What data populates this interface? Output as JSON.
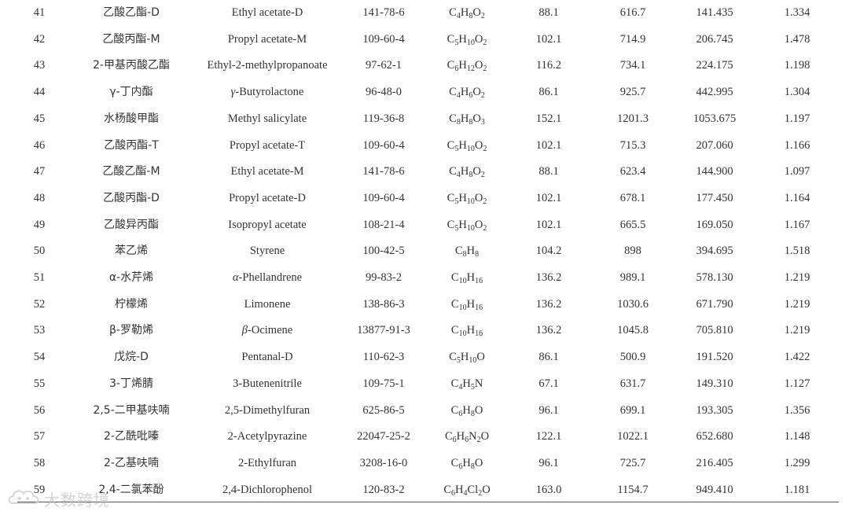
{
  "rows": [
    {
      "no": "41",
      "cn": "乙酸乙酯-D",
      "en": [
        {
          "t": "Ethyl acetate-D"
        }
      ],
      "cas": "141-78-6",
      "formula": [
        {
          "t": "C"
        },
        {
          "s": "4"
        },
        {
          "t": "H"
        },
        {
          "s": "8"
        },
        {
          "t": "O"
        },
        {
          "s": "2"
        }
      ],
      "mw": "88.1",
      "ri": "616.7",
      "rt": "141.435",
      "dt": "1.334"
    },
    {
      "no": "42",
      "cn": "乙酸丙酯-M",
      "en": [
        {
          "t": "Propyl acetate-M"
        }
      ],
      "cas": "109-60-4",
      "formula": [
        {
          "t": "C"
        },
        {
          "s": "5"
        },
        {
          "t": "H"
        },
        {
          "s": "10"
        },
        {
          "t": "O"
        },
        {
          "s": "2"
        }
      ],
      "mw": "102.1",
      "ri": "714.9",
      "rt": "206.745",
      "dt": "1.478"
    },
    {
      "no": "43",
      "cn": "2-甲基丙酸乙酯",
      "en": [
        {
          "t": "Ethyl-2-methylpropanoate"
        }
      ],
      "cas": "97-62-1",
      "formula": [
        {
          "t": "C"
        },
        {
          "s": "6"
        },
        {
          "t": "H"
        },
        {
          "s": "12"
        },
        {
          "t": "O"
        },
        {
          "s": "2"
        }
      ],
      "mw": "116.2",
      "ri": "734.1",
      "rt": "224.175",
      "dt": "1.198"
    },
    {
      "no": "44",
      "cn": "γ-丁内酯",
      "en": [
        {
          "i": "γ"
        },
        {
          "t": "-Butyrolactone"
        }
      ],
      "cas": "96-48-0",
      "formula": [
        {
          "t": "C"
        },
        {
          "s": "4"
        },
        {
          "t": "H"
        },
        {
          "s": "6"
        },
        {
          "t": "O"
        },
        {
          "s": "2"
        }
      ],
      "mw": "86.1",
      "ri": "925.7",
      "rt": "442.995",
      "dt": "1.304"
    },
    {
      "no": "45",
      "cn": "水杨酸甲酯",
      "en": [
        {
          "t": "Methyl salicylate"
        }
      ],
      "cas": "119-36-8",
      "formula": [
        {
          "t": "C"
        },
        {
          "s": "8"
        },
        {
          "t": "H"
        },
        {
          "s": "8"
        },
        {
          "t": "O"
        },
        {
          "s": "3"
        }
      ],
      "mw": "152.1",
      "ri": "1201.3",
      "rt": "1053.675",
      "dt": "1.197"
    },
    {
      "no": "46",
      "cn": "乙酸丙酯-T",
      "en": [
        {
          "t": "Propyl acetate-T"
        }
      ],
      "cas": "109-60-4",
      "formula": [
        {
          "t": "C"
        },
        {
          "s": "5"
        },
        {
          "t": "H"
        },
        {
          "s": "10"
        },
        {
          "t": "O"
        },
        {
          "s": "2"
        }
      ],
      "mw": "102.1",
      "ri": "715.3",
      "rt": "207.060",
      "dt": "1.166"
    },
    {
      "no": "47",
      "cn": "乙酸乙酯-M",
      "en": [
        {
          "t": "Ethyl acetate-M"
        }
      ],
      "cas": "141-78-6",
      "formula": [
        {
          "t": "C"
        },
        {
          "s": "4"
        },
        {
          "t": "H"
        },
        {
          "s": "8"
        },
        {
          "t": "O"
        },
        {
          "s": "2"
        }
      ],
      "mw": "88.1",
      "ri": "623.4",
      "rt": "144.900",
      "dt": "1.097"
    },
    {
      "no": "48",
      "cn": "乙酸丙酯-D",
      "en": [
        {
          "t": "Propyl acetate-D"
        }
      ],
      "cas": "109-60-4",
      "formula": [
        {
          "t": "C"
        },
        {
          "s": "5"
        },
        {
          "t": "H"
        },
        {
          "s": "10"
        },
        {
          "t": "O"
        },
        {
          "s": "2"
        }
      ],
      "mw": "102.1",
      "ri": "678.1",
      "rt": "177.450",
      "dt": "1.164"
    },
    {
      "no": "49",
      "cn": "乙酸异丙酯",
      "en": [
        {
          "t": "Isopropyl acetate"
        }
      ],
      "cas": "108-21-4",
      "formula": [
        {
          "t": "C"
        },
        {
          "s": "5"
        },
        {
          "t": "H"
        },
        {
          "s": "10"
        },
        {
          "t": "O"
        },
        {
          "s": "2"
        }
      ],
      "mw": "102.1",
      "ri": "665.5",
      "rt": "169.050",
      "dt": "1.167"
    },
    {
      "no": "50",
      "cn": "苯乙烯",
      "en": [
        {
          "t": "Styrene"
        }
      ],
      "cas": "100-42-5",
      "formula": [
        {
          "t": "C"
        },
        {
          "s": "8"
        },
        {
          "t": "H"
        },
        {
          "s": "8"
        }
      ],
      "mw": "104.2",
      "ri": "898",
      "rt": "394.695",
      "dt": "1.518"
    },
    {
      "no": "51",
      "cn": "α-水芹烯",
      "en": [
        {
          "i": "α"
        },
        {
          "t": "-Phellandrene"
        }
      ],
      "cas": "99-83-2",
      "formula": [
        {
          "t": "C"
        },
        {
          "s": "10"
        },
        {
          "t": "H"
        },
        {
          "s": "16"
        }
      ],
      "mw": "136.2",
      "ri": "989.1",
      "rt": "578.130",
      "dt": "1.219"
    },
    {
      "no": "52",
      "cn": "柠檬烯",
      "en": [
        {
          "t": "Limonene"
        }
      ],
      "cas": "138-86-3",
      "formula": [
        {
          "t": "C"
        },
        {
          "s": "10"
        },
        {
          "t": "H"
        },
        {
          "s": "16"
        }
      ],
      "mw": "136.2",
      "ri": "1030.6",
      "rt": "671.790",
      "dt": "1.219"
    },
    {
      "no": "53",
      "cn": "β-罗勒烯",
      "en": [
        {
          "i": "β"
        },
        {
          "t": "-Ocimene"
        }
      ],
      "cas": "13877-91-3",
      "formula": [
        {
          "t": "C"
        },
        {
          "s": "10"
        },
        {
          "t": "H"
        },
        {
          "s": "16"
        }
      ],
      "mw": "136.2",
      "ri": "1045.8",
      "rt": "705.810",
      "dt": "1.219"
    },
    {
      "no": "54",
      "cn": "戊烷-D",
      "en": [
        {
          "t": "Pentanal-D"
        }
      ],
      "cas": "110-62-3",
      "formula": [
        {
          "t": "C"
        },
        {
          "s": "5"
        },
        {
          "t": "H"
        },
        {
          "s": "10"
        },
        {
          "t": "O"
        }
      ],
      "mw": "86.1",
      "ri": "500.9",
      "rt": "191.520",
      "dt": "1.422"
    },
    {
      "no": "55",
      "cn": "3-丁烯腈",
      "en": [
        {
          "t": "3-Butenenitrile"
        }
      ],
      "cas": "109-75-1",
      "formula": [
        {
          "t": "C"
        },
        {
          "s": "4"
        },
        {
          "t": "H"
        },
        {
          "s": "5"
        },
        {
          "t": "N"
        }
      ],
      "mw": "67.1",
      "ri": "631.7",
      "rt": "149.310",
      "dt": "1.127"
    },
    {
      "no": "56",
      "cn": "2,5-二甲基呋喃",
      "en": [
        {
          "t": "2,5-Dimethylfuran"
        }
      ],
      "cas": "625-86-5",
      "formula": [
        {
          "t": "C"
        },
        {
          "s": "6"
        },
        {
          "t": "H"
        },
        {
          "s": "8"
        },
        {
          "t": "O"
        }
      ],
      "mw": "96.1",
      "ri": "699.1",
      "rt": "193.305",
      "dt": "1.356"
    },
    {
      "no": "57",
      "cn": "2-乙酰吡嗪",
      "en": [
        {
          "t": "2-Acetylpyrazine"
        }
      ],
      "cas": "22047-25-2",
      "formula": [
        {
          "t": "C"
        },
        {
          "s": "6"
        },
        {
          "t": "H"
        },
        {
          "s": "6"
        },
        {
          "t": "N"
        },
        {
          "s": "2"
        },
        {
          "t": "O"
        }
      ],
      "mw": "122.1",
      "ri": "1022.1",
      "rt": "652.680",
      "dt": "1.148"
    },
    {
      "no": "58",
      "cn": "2-乙基呋喃",
      "en": [
        {
          "t": "2-Ethylfuran"
        }
      ],
      "cas": "3208-16-0",
      "formula": [
        {
          "t": "C"
        },
        {
          "s": "6"
        },
        {
          "t": "H"
        },
        {
          "s": "8"
        },
        {
          "t": "O"
        }
      ],
      "mw": "96.1",
      "ri": "725.7",
      "rt": "216.405",
      "dt": "1.299"
    },
    {
      "no": "59",
      "cn": "2,4-二氯苯酚",
      "en": [
        {
          "t": "2,4-Dichlorophenol"
        }
      ],
      "cas": "120-83-2",
      "formula": [
        {
          "t": "C"
        },
        {
          "s": "6"
        },
        {
          "t": "H"
        },
        {
          "s": "4"
        },
        {
          "t": "Cl"
        },
        {
          "s": "2"
        },
        {
          "t": "O"
        }
      ],
      "mw": "163.0",
      "ri": "1154.7",
      "rt": "949.410",
      "dt": "1.181"
    }
  ],
  "watermark": {
    "text": "大数跨境",
    "icon": "cloud-logo-icon"
  },
  "colors": {
    "text": "#333333",
    "rule": "#555555",
    "watermark": "#c8c8c8"
  }
}
